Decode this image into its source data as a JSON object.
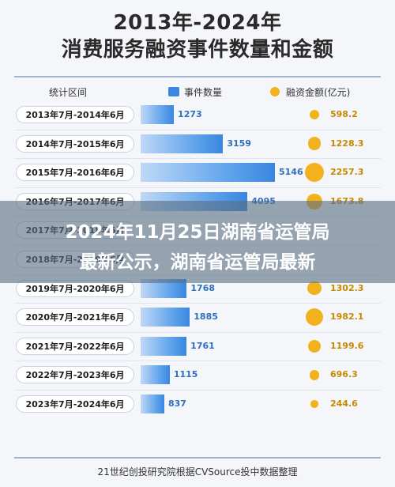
{
  "chart_data": {
    "type": "bar",
    "title": "2013年-2024年",
    "subtitle": "消费服务融资事件数量和金额",
    "header_period": "统计区间",
    "series_names": [
      "事件数量",
      "融资金额(亿元)"
    ],
    "categories": [
      "2013年7月-2014年6月",
      "2014年7月-2015年6月",
      "2015年7月-2016年6月",
      "2016年7月-2017年6月",
      "2017年7月-2018年6月",
      "2018年7月-2019年6月",
      "2019年7月-2020年6月",
      "2020年7月-2021年6月",
      "2021年7月-2022年6月",
      "2022年7月-2023年6月",
      "2023年7月-2024年6月"
    ],
    "series": [
      {
        "name": "事件数量",
        "values": [
          1273,
          3159,
          5146,
          4095,
          null,
          null,
          1768,
          1885,
          1761,
          1115,
          837
        ]
      },
      {
        "name": "融资金额(亿元)",
        "values": [
          598.2,
          1228.3,
          2257.3,
          1673.8,
          null,
          null,
          1302.3,
          1982.1,
          1199.6,
          696.3,
          244.6
        ]
      }
    ],
    "count_labels": [
      "1273",
      "3159",
      "5146",
      "4095",
      "",
      "",
      "1768",
      "1885",
      "1761",
      "1115",
      "837"
    ],
    "amount_labels": [
      "598.2",
      "1228.3",
      "2257.3",
      "1673.8",
      "",
      "",
      "1302.3",
      "1982.1",
      "1199.6",
      "696.3",
      "244.6"
    ],
    "source": "21世纪创投研究院根据CVSource投中数据整理"
  },
  "overlay": {
    "line1": "2024年11月25日湖南省运管局",
    "line2": "最新公示，湖南省运管局最新"
  },
  "colors": {
    "bar": "#3a86e0",
    "dot": "#f2b21e",
    "overlay": "#5a6e82"
  }
}
